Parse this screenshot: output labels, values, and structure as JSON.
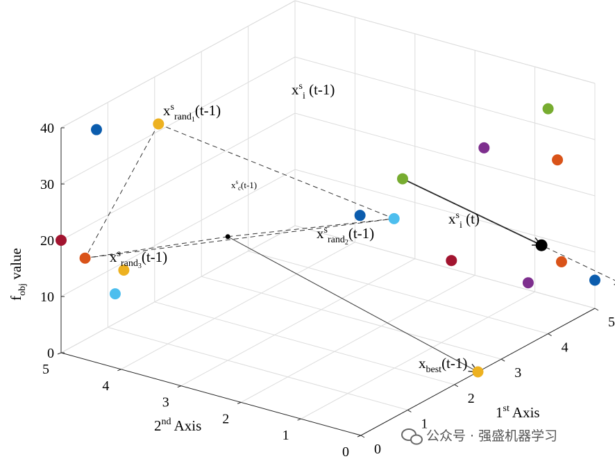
{
  "chart_data": {
    "type": "scatter",
    "projection": "3d",
    "grid": true,
    "zlabel_base": "f",
    "zlabel_sub": "obj",
    "zlabel_tail": " value",
    "xlabel_base": "1",
    "xlabel_sup": "st",
    "xlabel_tail": " Axis",
    "ylabel_base": "2",
    "ylabel_sup": "nd",
    "ylabel_tail": " Axis",
    "x_ticks": [
      "0",
      "1",
      "2",
      "3",
      "4",
      "5"
    ],
    "y_ticks": [
      "0",
      "1",
      "2",
      "3",
      "4",
      "5"
    ],
    "z_ticks": [
      "0",
      "10",
      "20",
      "30",
      "40"
    ],
    "xlim": [
      0,
      5
    ],
    "ylim": [
      0,
      5
    ],
    "zlim": [
      0,
      40
    ],
    "points": [
      {
        "x": 4.0,
        "y": 0.0,
        "z": 40.0,
        "color": "#77ac30"
      },
      {
        "x": 3.4,
        "y": 0.6,
        "z": 34.0,
        "color": "#7e2f8e"
      },
      {
        "x": 4.2,
        "y": 0.0,
        "z": 30.0,
        "color": "#d95319"
      },
      {
        "x": 2.3,
        "y": 1.1,
        "z": 32.0,
        "color": "#77ac30",
        "role": "xi_prev"
      },
      {
        "x": 0.8,
        "y": 4.0,
        "z": 40.0,
        "color": "#edb120",
        "role": "rand1"
      },
      {
        "x": 0.5,
        "y": 4.8,
        "z": 38.0,
        "color": "#0b5cad"
      },
      {
        "x": 2.8,
        "y": 2.2,
        "z": 20.0,
        "color": "#0b5cad"
      },
      {
        "x": 3.4,
        "y": 2.1,
        "z": 17.0,
        "color": "#4dbeee",
        "role": "rand2"
      },
      {
        "x": 0.0,
        "y": 5.0,
        "z": 20.0,
        "color": "#a2142f"
      },
      {
        "x": 0.0,
        "y": 4.6,
        "z": 18.0,
        "color": "#d95319",
        "role": "rand3"
      },
      {
        "x": 0.7,
        "y": 4.5,
        "z": 13.0,
        "color": "#edb120"
      },
      {
        "x": 0.9,
        "y": 4.8,
        "z": 7.0,
        "color": "#4dbeee"
      },
      {
        "x": 3.6,
        "y": 1.3,
        "z": 11.0,
        "color": "#a2142f"
      },
      {
        "x": 4.5,
        "y": 0.5,
        "z": 12.0,
        "color": "#000000",
        "role": "xi_t"
      },
      {
        "x": 4.8,
        "y": 0.4,
        "z": 8.0,
        "color": "#d95319"
      },
      {
        "x": 4.6,
        "y": 0.8,
        "z": 4.0,
        "color": "#7e2f8e"
      },
      {
        "x": 5.0,
        "y": 0.0,
        "z": 5.0,
        "color": "#0b5cad"
      },
      {
        "x": 2.5,
        "y": 0.0,
        "z": 0.0,
        "color": "#edb120",
        "role": "best"
      },
      {
        "x": 1.0,
        "y": 3.0,
        "z": 22.0,
        "color": "#000000",
        "role": "centroid"
      }
    ],
    "annotations": {
      "rand1": {
        "base": "x",
        "sup": "s",
        "sub": "rand",
        "subsub": "1",
        "tail": "(t-1)"
      },
      "rand2": {
        "base": "x",
        "sup": "s",
        "sub": "rand",
        "subsub": "2",
        "tail": "(t-1)"
      },
      "rand3": {
        "base": "x",
        "sup": "s",
        "sub": "rand",
        "subsub": "3",
        "tail": "(t-1)"
      },
      "xi_prev": {
        "base": "x",
        "sup": "s",
        "sub": "i",
        "tail": " (t-1)"
      },
      "xi_t": {
        "base": "x",
        "sup": "s",
        "sub": "i",
        "tail": " (t)"
      },
      "best": {
        "base": "x",
        "sub": "best",
        "tail": "(t-1)"
      },
      "centroid": {
        "base": "x",
        "sup": "s",
        "sub": "c",
        "tail": "(t-1)"
      }
    }
  },
  "watermark": {
    "text": "公众号 · 强盛机器学习",
    "icon": "wechat-icon"
  }
}
